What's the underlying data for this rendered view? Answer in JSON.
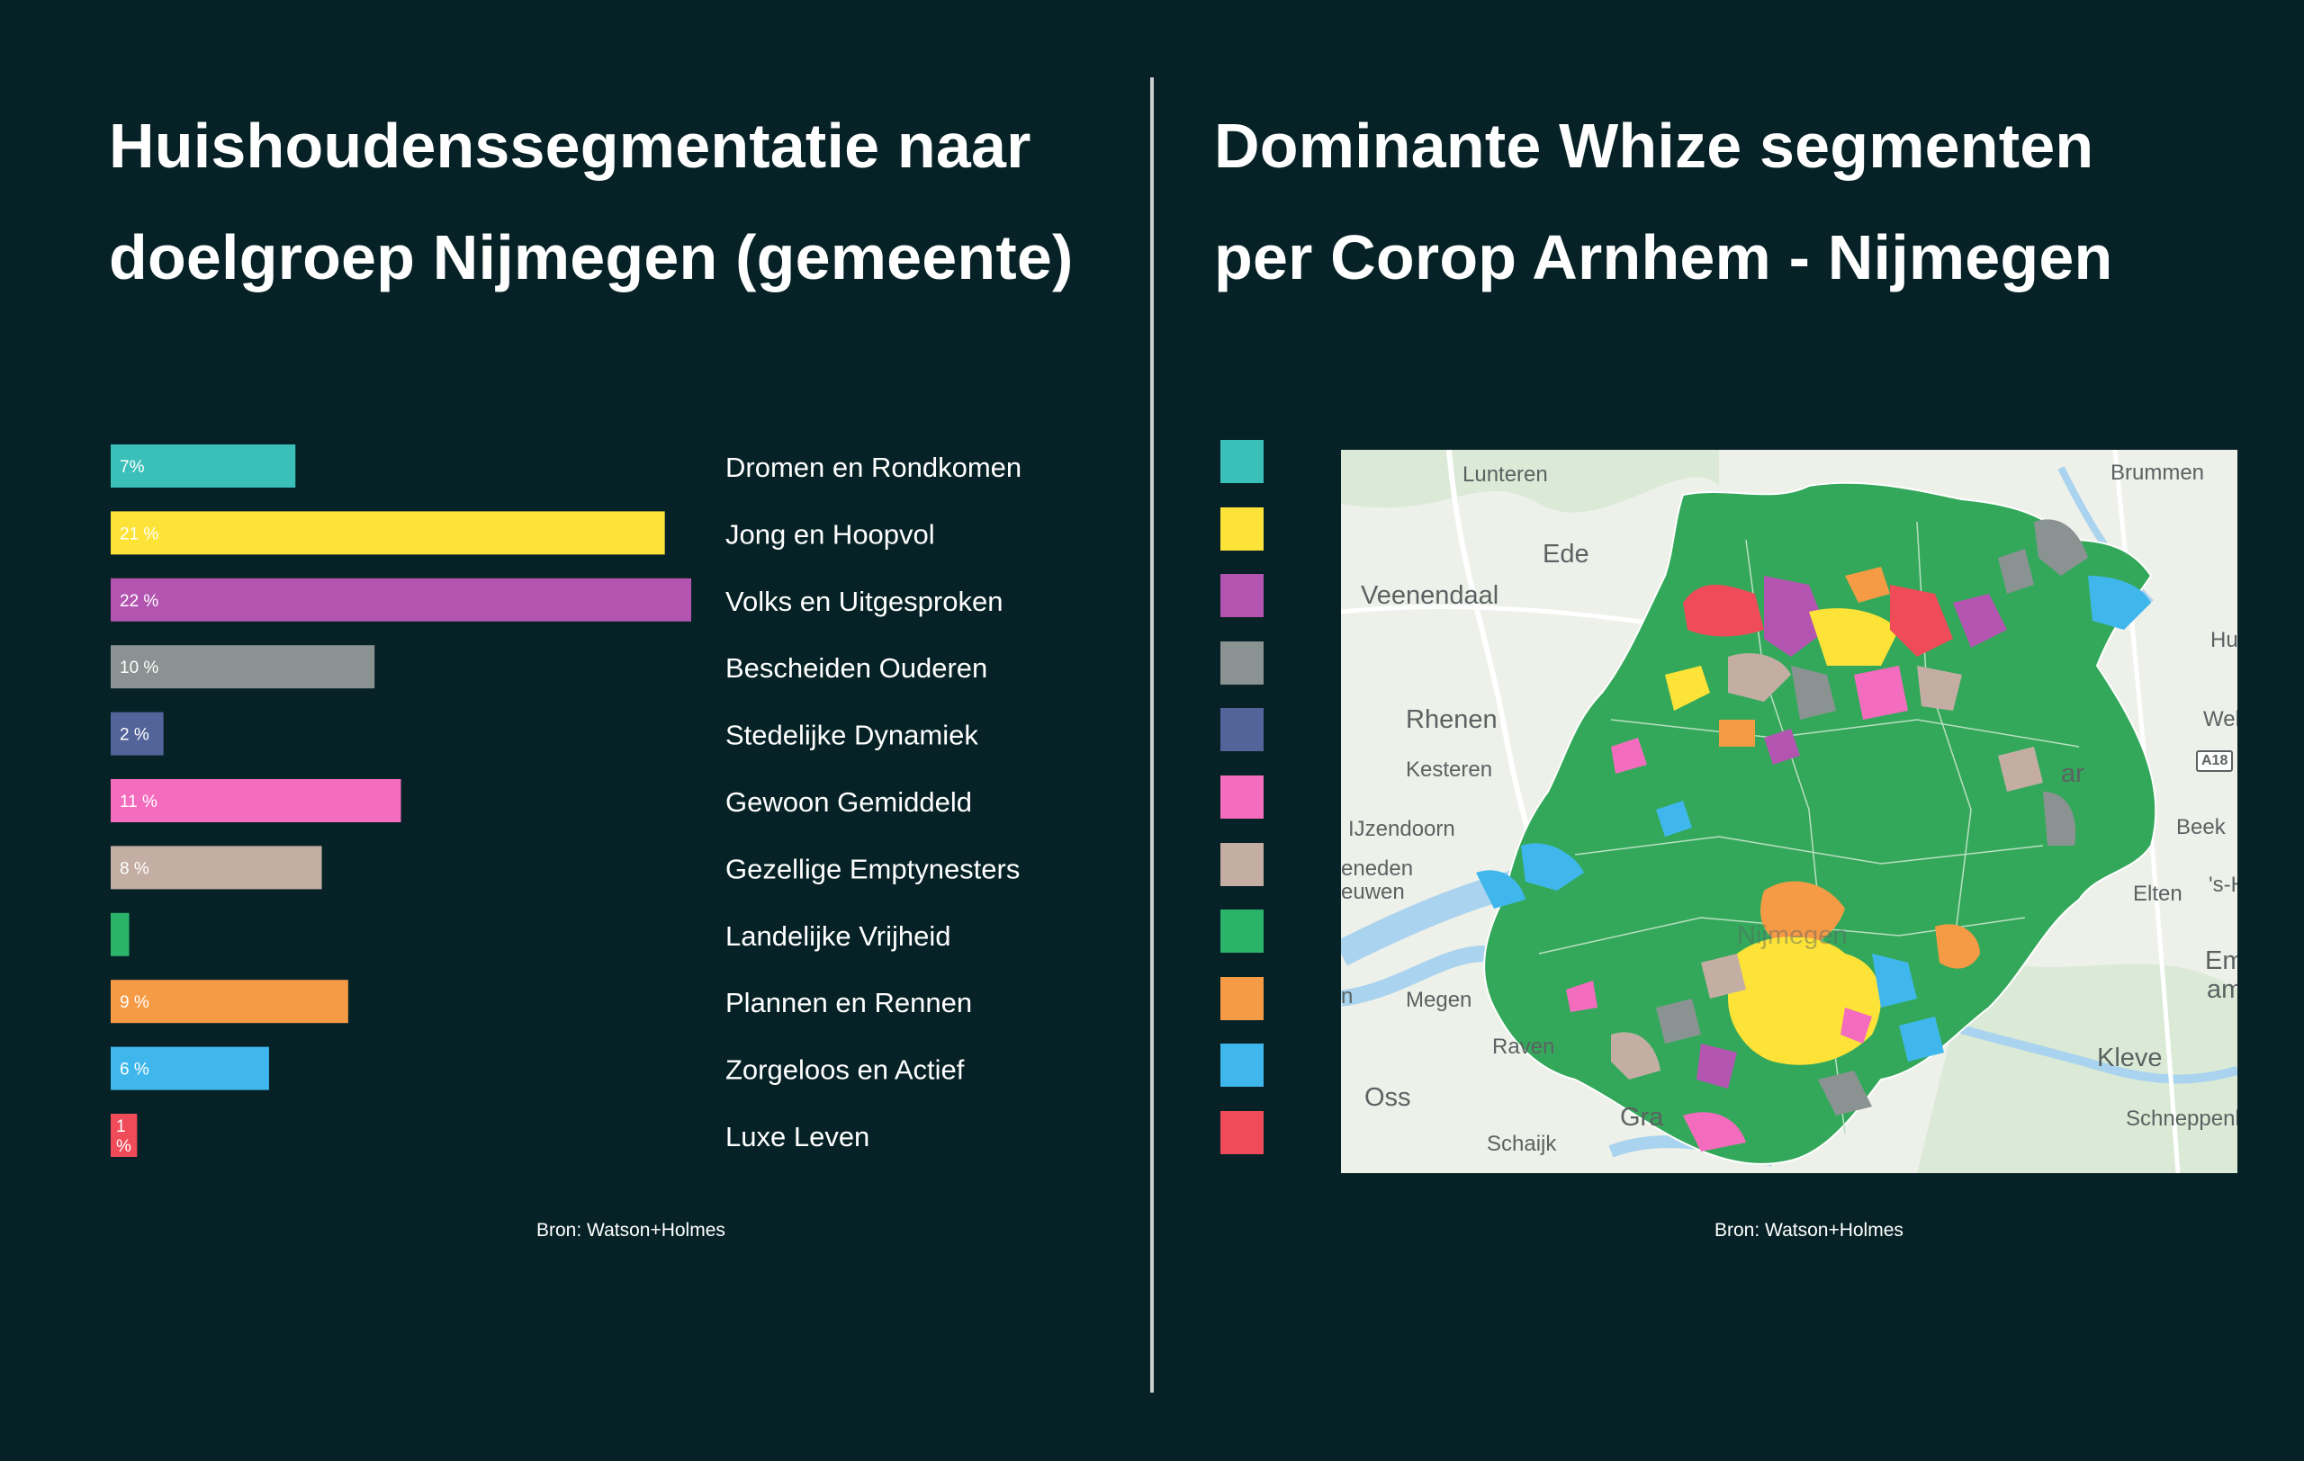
{
  "left_panel": {
    "title_line1": "Huishoudenssegmentatie naar",
    "title_line2": "doelgroep Nijmegen (gemeente)",
    "source": "Bron: Watson+Holmes"
  },
  "right_panel": {
    "title_line1": "Dominante Whize segmenten",
    "title_line2": "per Corop Arnhem - Nijmegen",
    "source": "Bron: Watson+Holmes"
  },
  "chart_data": {
    "type": "bar",
    "orientation": "horizontal",
    "categories": [
      "Dromen en Rondkomen",
      "Jong en Hoopvol",
      "Volks en Uitgesproken",
      "Bescheiden Ouderen",
      "Stedelijke Dynamiek",
      "Gewoon Gemiddeld",
      "Gezellige Emptynesters",
      "Landelijke Vrijheid",
      "Plannen en Rennen",
      "Zorgeloos en Actief",
      "Luxe Leven"
    ],
    "values": [
      7,
      21,
      22,
      10,
      2,
      11,
      8,
      0.7,
      9,
      6,
      1
    ],
    "value_labels": [
      "7%",
      "21 %",
      "22 %",
      "10 %",
      "2 %",
      "11 %",
      "8 %",
      "",
      "9 %",
      "6 %",
      "1 %"
    ],
    "colors": [
      "#3bbfb9",
      "#fde338",
      "#b355b0",
      "#8a9392",
      "#53649b",
      "#f46cbd",
      "#c4aea4",
      "#2ab46a",
      "#f69b45",
      "#3fb7ec",
      "#ef4b58"
    ],
    "xlim": [
      0,
      22
    ],
    "grid": false,
    "legend": "right"
  },
  "map": {
    "legend_colors": [
      "#3bbfb9",
      "#fde338",
      "#b355b0",
      "#8a9392",
      "#53649b",
      "#f46cbd",
      "#c4aea4",
      "#2ab46a",
      "#f69b45",
      "#3fb7ec",
      "#ef4b58"
    ],
    "region_color": "#34a85a",
    "water_color": "#a9d3ee",
    "places": [
      "Lunteren",
      "Brummen",
      "Ede",
      "Veenendaal",
      "Hu",
      "Rhenen",
      "Weh",
      "Kesteren",
      "A18",
      "IJzendoorn",
      "Beek",
      "eneden",
      "euwen",
      "Elten",
      "'s-H",
      "Em",
      "am",
      "Megen",
      "n",
      "Raven",
      "Kleve",
      "Oss",
      "Gra",
      "Schaijk",
      "Schneppenb",
      "Nijmegen",
      "ar"
    ]
  }
}
